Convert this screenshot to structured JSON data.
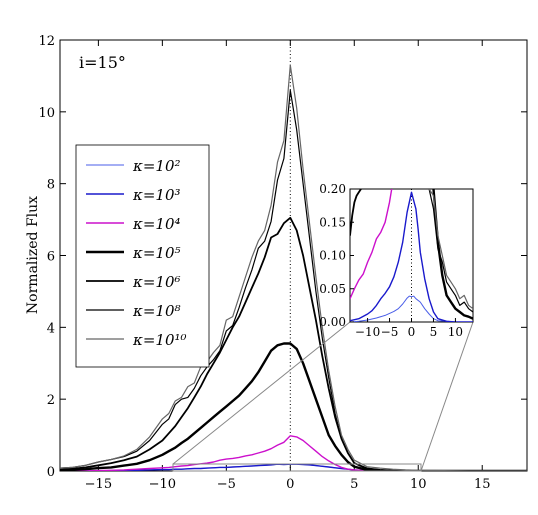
{
  "chart_data": [
    {
      "type": "line",
      "title": "",
      "annotation": "i=15°",
      "xlabel": "",
      "ylabel": "Normalized Flux",
      "xlim": [
        -18,
        18.5
      ],
      "ylim": [
        0,
        12
      ],
      "xticks": [
        -15,
        -10,
        -5,
        0,
        5,
        10,
        15
      ],
      "yticks": [
        0,
        2,
        4,
        6,
        8,
        10,
        12
      ],
      "xtick_labels": [
        "−15",
        "−10",
        "−5",
        "0",
        "5",
        "10",
        "15"
      ],
      "ytick_labels": [
        "0",
        "2",
        "4",
        "6",
        "8",
        "10",
        "12"
      ],
      "vline_dotted_at_x": 0,
      "grid": false,
      "legend_placement": "left",
      "x": [
        -18,
        -17,
        -16,
        -15,
        -14,
        -13,
        -12,
        -11,
        -10,
        -9.5,
        -9,
        -8.5,
        -8,
        -7.5,
        -7,
        -6.5,
        -6,
        -5.5,
        -5,
        -4.5,
        -4,
        -3.5,
        -3,
        -2.5,
        -2,
        -1.5,
        -1,
        -0.5,
        0,
        0.5,
        1,
        1.5,
        2,
        2.5,
        3,
        3.5,
        4,
        4.5,
        5,
        6,
        7,
        8,
        9,
        10,
        12,
        14,
        16,
        18.5
      ],
      "series": [
        {
          "name": "κ=10²",
          "color": "#4a5ee8",
          "width": 1,
          "values": [
            0,
            0,
            0,
            0,
            0.01,
            0.01,
            0.02,
            0.03,
            0.04,
            0.04,
            0.05,
            0.05,
            0.06,
            0.07,
            0.07,
            0.08,
            0.09,
            0.1,
            0.1,
            0.11,
            0.12,
            0.13,
            0.14,
            0.15,
            0.16,
            0.17,
            0.19,
            0.18,
            0.19,
            0.19,
            0.18,
            0.17,
            0.15,
            0.13,
            0.11,
            0.09,
            0.07,
            0.05,
            0.03,
            0.01,
            0,
            0,
            0,
            0,
            0,
            0,
            0,
            0
          ]
        },
        {
          "name": "κ=10³",
          "color": "#1a1acc",
          "width": 1.4,
          "values": [
            0,
            0,
            0,
            0,
            0.01,
            0.01,
            0.02,
            0.03,
            0.04,
            0.04,
            0.05,
            0.05,
            0.06,
            0.07,
            0.07,
            0.08,
            0.09,
            0.1,
            0.1,
            0.11,
            0.12,
            0.13,
            0.14,
            0.15,
            0.16,
            0.17,
            0.19,
            0.18,
            0.19,
            0.19,
            0.18,
            0.17,
            0.15,
            0.13,
            0.11,
            0.09,
            0.07,
            0.05,
            0.03,
            0.01,
            0,
            0,
            0,
            0,
            0,
            0,
            0,
            0
          ]
        },
        {
          "name": "κ=10⁴",
          "color": "#cc10cc",
          "width": 1.4,
          "values": [
            0,
            0,
            0,
            0.01,
            0.02,
            0.03,
            0.05,
            0.07,
            0.09,
            0.1,
            0.12,
            0.14,
            0.15,
            0.18,
            0.2,
            0.22,
            0.25,
            0.3,
            0.33,
            0.35,
            0.38,
            0.42,
            0.45,
            0.5,
            0.55,
            0.62,
            0.72,
            0.8,
            0.98,
            0.95,
            0.85,
            0.7,
            0.55,
            0.4,
            0.28,
            0.18,
            0.1,
            0.05,
            0.03,
            0.01,
            0,
            0,
            0,
            0,
            0,
            0,
            0,
            0
          ]
        },
        {
          "name": "κ=10⁵",
          "color": "#000000",
          "width": 2.4,
          "values": [
            0.02,
            0.03,
            0.05,
            0.08,
            0.1,
            0.15,
            0.2,
            0.3,
            0.45,
            0.55,
            0.65,
            0.78,
            0.9,
            1.05,
            1.2,
            1.35,
            1.5,
            1.65,
            1.8,
            1.95,
            2.1,
            2.3,
            2.5,
            2.75,
            3.05,
            3.35,
            3.5,
            3.55,
            3.55,
            3.4,
            3.0,
            2.5,
            2.0,
            1.5,
            1.0,
            0.7,
            0.45,
            0.25,
            0.12,
            0.03,
            0,
            0,
            0,
            0,
            0,
            0,
            0,
            0
          ]
        },
        {
          "name": "κ=10⁶",
          "color": "#000000",
          "width": 1.8,
          "values": [
            0.04,
            0.06,
            0.1,
            0.16,
            0.22,
            0.3,
            0.4,
            0.6,
            0.85,
            1.05,
            1.25,
            1.5,
            1.75,
            2.05,
            2.35,
            2.7,
            3.0,
            3.3,
            3.65,
            4.0,
            4.3,
            4.7,
            5.1,
            5.5,
            5.95,
            6.5,
            6.6,
            6.9,
            7.05,
            6.7,
            6.0,
            5.1,
            4.2,
            3.2,
            2.3,
            1.5,
            0.9,
            0.5,
            0.22,
            0.06,
            0.02,
            0,
            0,
            0,
            0,
            0,
            0,
            0
          ]
        },
        {
          "name": "κ=10⁸",
          "color": "#000000",
          "width": 1.2,
          "values": [
            0.08,
            0.1,
            0.16,
            0.25,
            0.32,
            0.4,
            0.55,
            0.85,
            1.3,
            1.45,
            1.85,
            2.0,
            2.05,
            2.3,
            2.65,
            2.9,
            3.1,
            3.35,
            3.9,
            4.05,
            4.55,
            5.1,
            5.6,
            6.2,
            6.4,
            6.95,
            8.1,
            8.7,
            10.6,
            9.5,
            8.0,
            6.5,
            5.0,
            3.7,
            2.6,
            1.6,
            0.9,
            0.5,
            0.22,
            0.08,
            0.04,
            0.02,
            0.01,
            0,
            0,
            0,
            0,
            0
          ]
        },
        {
          "name": "κ=10¹⁰",
          "color": "#666666",
          "width": 1.2,
          "values": [
            0.08,
            0.1,
            0.16,
            0.25,
            0.32,
            0.42,
            0.6,
            0.95,
            1.45,
            1.6,
            1.95,
            2.05,
            2.35,
            2.45,
            2.9,
            3.05,
            3.3,
            3.5,
            4.2,
            4.3,
            4.85,
            5.4,
            5.95,
            6.4,
            6.7,
            7.4,
            8.6,
            9.2,
            11.3,
            10.1,
            8.4,
            6.9,
            5.4,
            4.0,
            2.8,
            1.8,
            1.0,
            0.6,
            0.3,
            0.12,
            0.08,
            0.05,
            0.03,
            0.02,
            0.01,
            0,
            0,
            0
          ]
        }
      ]
    },
    {
      "type": "line",
      "title": "",
      "xlim": [
        -14,
        14
      ],
      "ylim": [
        0,
        0.2
      ],
      "xticks": [
        -10,
        -5,
        0,
        5,
        10
      ],
      "yticks": [
        0,
        0.05,
        0.1,
        0.15,
        0.2
      ],
      "xtick_labels": [
        "−10",
        "−5",
        "0",
        "5",
        "10"
      ],
      "ytick_labels": [
        "0.00",
        "0.05",
        "0.10",
        "0.15",
        "0.20"
      ],
      "vline_dotted_at_x": 0,
      "note": "zoomed view of main panel",
      "series": [
        {
          "name": "κ=10²",
          "color": "#4a5ee8",
          "width": 1,
          "x": [
            -14,
            -12,
            -10,
            -8,
            -6,
            -4,
            -3,
            -2,
            -1,
            -0.5,
            0,
            0.5,
            1,
            2,
            3,
            4,
            5,
            6,
            8,
            10,
            12,
            14
          ],
          "values": [
            0,
            0.001,
            0.003,
            0.006,
            0.01,
            0.016,
            0.02,
            0.027,
            0.036,
            0.039,
            0.038,
            0.039,
            0.035,
            0.03,
            0.02,
            0.012,
            0.005,
            0.002,
            0.001,
            0,
            0,
            0
          ]
        },
        {
          "name": "κ=10³",
          "color": "#1a1acc",
          "width": 1.4,
          "x": [
            -14,
            -12,
            -10,
            -9,
            -8,
            -7,
            -6,
            -5,
            -4,
            -3,
            -2,
            -1,
            0,
            1,
            1.5,
            2,
            3,
            4,
            5,
            6,
            8,
            10,
            12,
            14
          ],
          "values": [
            0.002,
            0.005,
            0.012,
            0.017,
            0.025,
            0.035,
            0.043,
            0.053,
            0.068,
            0.09,
            0.12,
            0.165,
            0.195,
            0.17,
            0.14,
            0.105,
            0.065,
            0.035,
            0.015,
            0.005,
            0.001,
            0,
            0,
            0
          ]
        },
        {
          "name": "κ=10⁴",
          "color": "#cc10cc",
          "width": 1.4,
          "x": [
            -14,
            -13,
            -12,
            -11,
            -10,
            -9,
            -8,
            -7,
            -6,
            -5,
            -4.5,
            -4
          ],
          "values": [
            0.035,
            0.05,
            0.063,
            0.072,
            0.09,
            0.105,
            0.125,
            0.135,
            0.15,
            0.18,
            0.2,
            0.23
          ]
        },
        {
          "name": "κ=10⁵",
          "color": "#000000",
          "width": 2.4,
          "x": [
            5,
            6,
            7,
            8,
            9,
            10,
            11,
            12,
            13,
            14
          ],
          "values": [
            0.2,
            0.12,
            0.07,
            0.04,
            0.03,
            0.02,
            0.015,
            0.01,
            0.008,
            0.005
          ]
        },
        {
          "name": "κ=10⁶",
          "color": "#000000",
          "width": 1.8,
          "x": [
            -14,
            -13.5,
            -13,
            -12.5,
            -12,
            -11.5,
            -11
          ],
          "values": [
            0.13,
            0.16,
            0.18,
            0.19,
            0.195,
            0.2,
            0.24
          ]
        },
        {
          "name": "κ=10⁸",
          "color": "#000000",
          "width": 1.2,
          "x": [
            3.5,
            4,
            5,
            6,
            7,
            8,
            9,
            10,
            11,
            12,
            13,
            14
          ],
          "values": [
            0.25,
            0.2,
            0.17,
            0.11,
            0.09,
            0.06,
            0.05,
            0.04,
            0.025,
            0.03,
            0.02,
            0.015
          ]
        },
        {
          "name": "κ=10¹⁰",
          "color": "#666666",
          "width": 1.2,
          "x": [
            3.5,
            4,
            5,
            6,
            7,
            8,
            9,
            10,
            11,
            12,
            13,
            14
          ],
          "values": [
            0.25,
            0.2,
            0.19,
            0.13,
            0.1,
            0.07,
            0.06,
            0.05,
            0.035,
            0.04,
            0.025,
            0.02
          ]
        }
      ]
    }
  ]
}
